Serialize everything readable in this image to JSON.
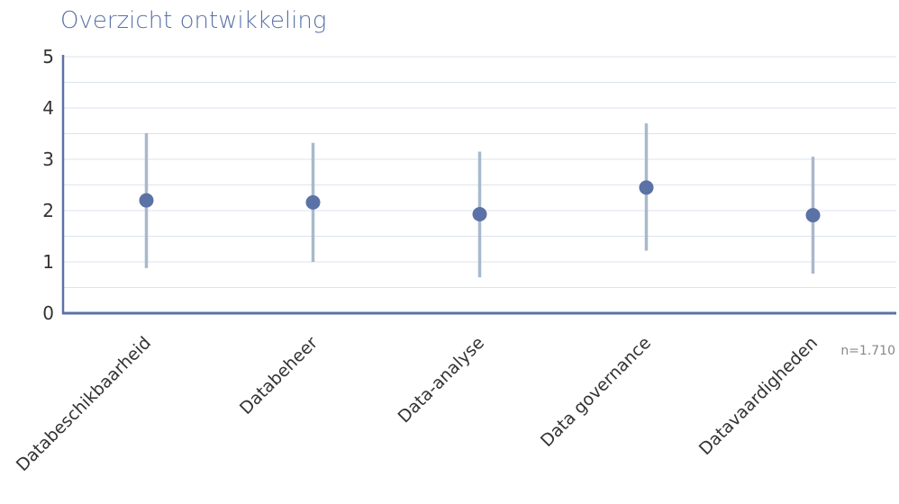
{
  "chart_data": {
    "type": "scatter",
    "title": "Overzicht ontwikkeling",
    "xlabel": "",
    "ylabel": "",
    "ylim": [
      0,
      5
    ],
    "yticks": [
      "0",
      "1",
      "2",
      "3",
      "4",
      "5"
    ],
    "categories": [
      "Databeschikbaarheid",
      "Databeheer",
      "Data-analyse",
      "Data governance",
      "Datavaardigheden"
    ],
    "values": [
      2.2,
      2.16,
      1.93,
      2.45,
      1.91
    ],
    "range_low": [
      0.88,
      1.0,
      0.7,
      1.22,
      0.77
    ],
    "range_high": [
      3.51,
      3.32,
      3.15,
      3.7,
      3.05
    ],
    "grid": true,
    "annotation": "n=1.710",
    "colors": {
      "point": "#5b72a6",
      "range": "#a9b9cc",
      "axis": "#5b72a6",
      "grid": "#dde3ec",
      "title": "#5b72a6"
    }
  }
}
